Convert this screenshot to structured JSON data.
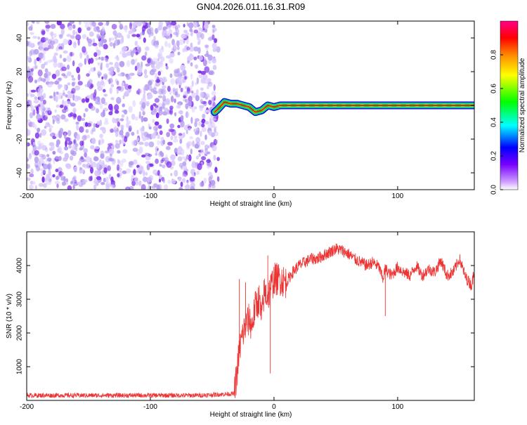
{
  "title": "GN04.2026.011.16.31.R09",
  "colors": {
    "snr_line": "#ee3333",
    "ridge_core": "#dd2222",
    "ridge_mid": "#22dd22",
    "ridge_outer": "#1111cc",
    "noise_light": "#d9c8ff",
    "noise_mid": "#b39af0",
    "noise_dark": "#7a2be8"
  },
  "chart_data": [
    {
      "type": "heatmap",
      "title": "GN04.2026.011.16.31.R09",
      "xlabel": "Height of straight line (km)",
      "ylabel": "Frequency (Hz)",
      "xlim": [
        -200,
        162
      ],
      "ylim": [
        -50,
        50
      ],
      "x_ticks": [
        "-200",
        "-100",
        "0",
        "100"
      ],
      "y_ticks": [
        "-40",
        "-20",
        "0",
        "20",
        "40"
      ],
      "x_tick_values": [
        -200,
        -100,
        0,
        100
      ],
      "y_tick_values": [
        -40,
        -20,
        0,
        20,
        40
      ],
      "noise_region_x": [
        -200,
        -45
      ],
      "ridge": {
        "x": [
          -48,
          -45,
          -40,
          -35,
          -30,
          -25,
          -20,
          -15,
          -10,
          -5,
          0,
          5,
          10,
          20,
          40,
          60,
          80,
          100,
          120,
          140,
          162
        ],
        "y": [
          -4,
          -2,
          2,
          1,
          1,
          0,
          -1,
          -4,
          -3,
          0,
          -1,
          0,
          0,
          0,
          0,
          0,
          0,
          0,
          0,
          0,
          0
        ]
      },
      "colorbar": {
        "label": "Normalized spectral amplitude",
        "range": [
          0,
          1
        ],
        "ticks": [
          "0.0",
          "0.2",
          "0.4",
          "0.6",
          "0.8"
        ],
        "tick_values": [
          0.0,
          0.2,
          0.4,
          0.6,
          0.8
        ],
        "colormap": [
          "#ffffff",
          "#cc99ff",
          "#7700ff",
          "#0000ff",
          "#00ffff",
          "#00ff00",
          "#ffff00",
          "#ff8800",
          "#ff0000",
          "#ff0088"
        ]
      }
    },
    {
      "type": "line",
      "xlabel": "Height of straight line (km)",
      "ylabel": "SNR (10 * v/v)",
      "xlim": [
        -200,
        162
      ],
      "ylim": [
        0,
        5000
      ],
      "x_ticks": [
        "-200",
        "-100",
        "0",
        "100"
      ],
      "y_ticks": [
        "1000",
        "2000",
        "3000",
        "4000"
      ],
      "x_tick_values": [
        -200,
        -100,
        0,
        100
      ],
      "y_tick_values": [
        1000,
        2000,
        3000,
        4000
      ],
      "series": [
        {
          "x": [
            -200,
            -60,
            -32,
            -30,
            -28,
            -25,
            -22,
            -20,
            -18,
            -15,
            -12,
            -10,
            -8,
            -5,
            -3,
            0,
            5,
            10,
            15,
            20,
            25,
            30,
            35,
            40,
            45,
            50,
            55,
            60,
            65,
            70,
            75,
            80,
            85,
            88,
            90,
            95,
            100,
            105,
            110,
            115,
            120,
            125,
            130,
            135,
            140,
            145,
            150,
            155,
            160,
            162
          ],
          "y": [
            150,
            150,
            200,
            800,
            1500,
            2000,
            2300,
            2400,
            2200,
            2800,
            3000,
            2400,
            3200,
            3100,
            3300,
            3600,
            3600,
            3500,
            3800,
            4000,
            4100,
            4200,
            4200,
            4300,
            4400,
            4500,
            4450,
            4350,
            4200,
            4100,
            4000,
            4100,
            3950,
            3600,
            3900,
            3700,
            3950,
            3800,
            3700,
            4000,
            3700,
            3900,
            3800,
            4150,
            3700,
            3800,
            4200,
            3650,
            3400,
            3900
          ]
        }
      ]
    }
  ]
}
